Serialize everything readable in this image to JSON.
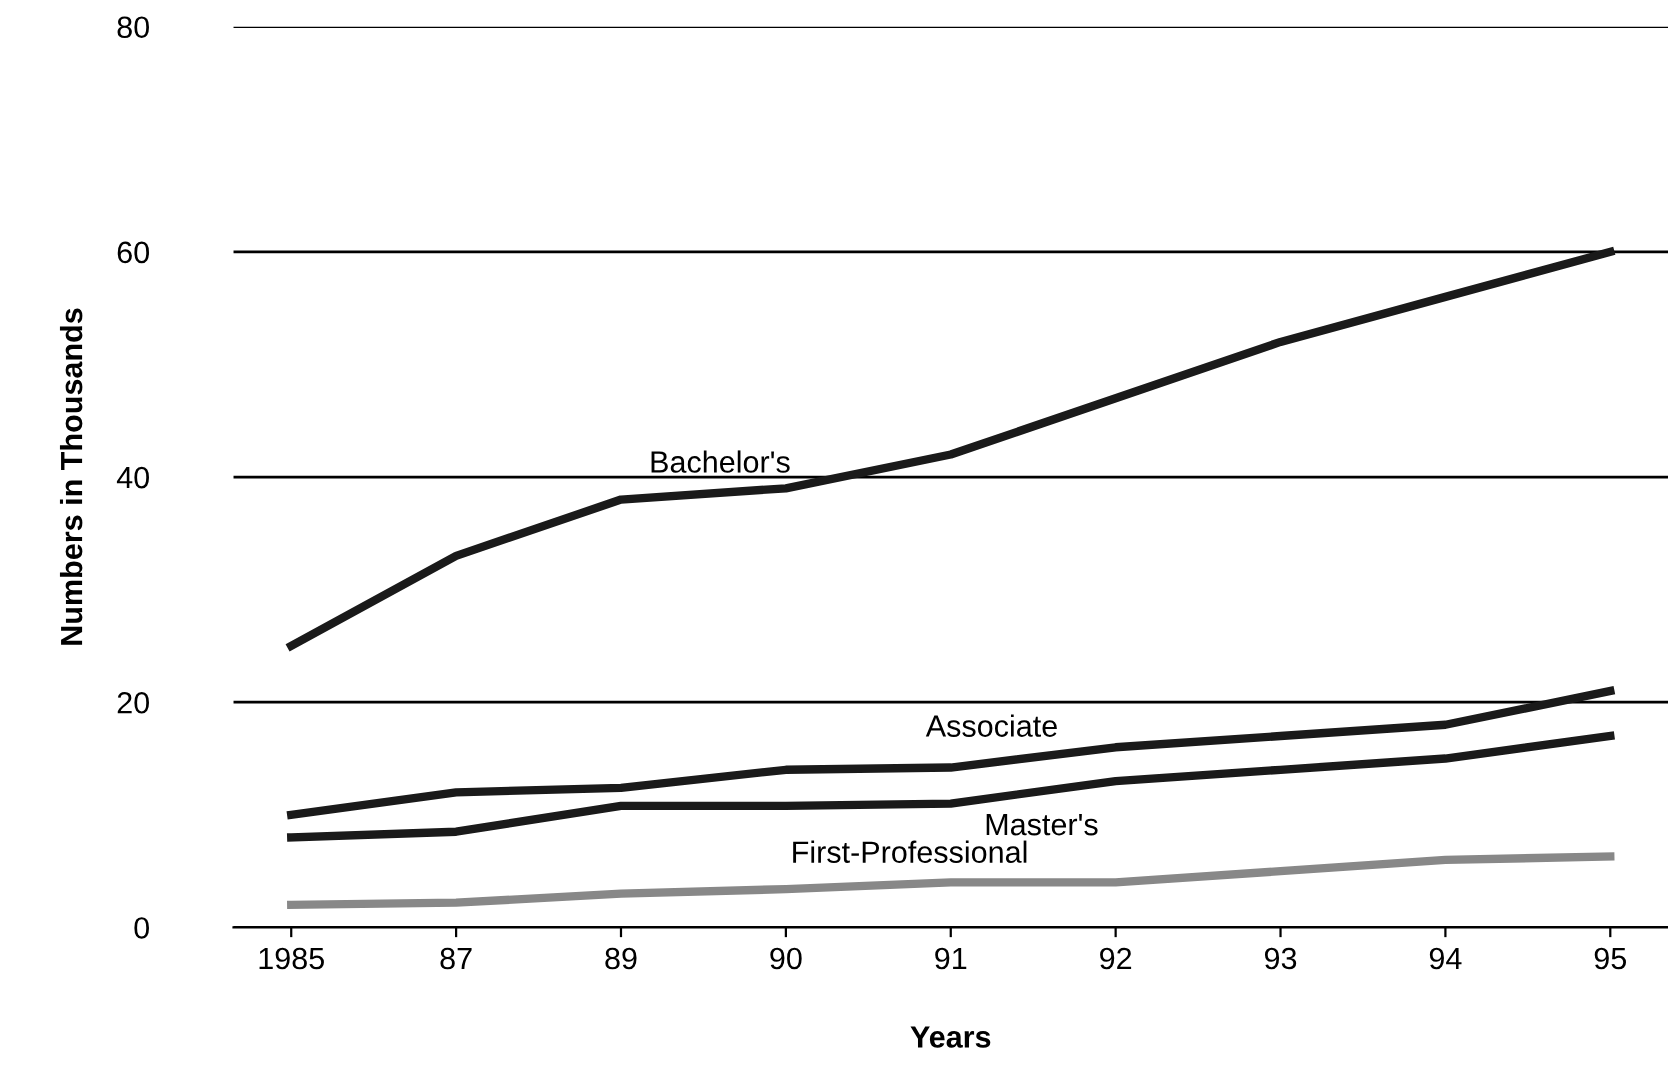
{
  "chart_data": {
    "type": "line",
    "xlabel": "Years",
    "ylabel": "Numbers in Thousands",
    "categories": [
      "1985",
      "87",
      "89",
      "90",
      "91",
      "92",
      "93",
      "94",
      "95"
    ],
    "series": [
      {
        "name": "Bachelor's",
        "color": "#1a1a1a",
        "values": [
          25,
          33,
          38,
          39,
          42,
          47,
          52,
          56,
          60
        ]
      },
      {
        "name": "Associate",
        "color": "#1a1a1a",
        "values": [
          10,
          12,
          12.4,
          14,
          14.2,
          16,
          17,
          18,
          21
        ]
      },
      {
        "name": "Master's",
        "color": "#1a1a1a",
        "values": [
          8,
          8.5,
          10.8,
          10.8,
          11,
          13,
          14,
          15,
          17
        ]
      },
      {
        "name": "First-Professional",
        "color": "#888888",
        "values": [
          2,
          2.2,
          3,
          3.4,
          4,
          4,
          5,
          6,
          6.3
        ]
      }
    ],
    "ylim": [
      0,
      80
    ],
    "yticks": [
      0,
      20,
      40,
      60,
      80
    ],
    "grid": "y",
    "marker": "none",
    "line_style": "solid"
  }
}
